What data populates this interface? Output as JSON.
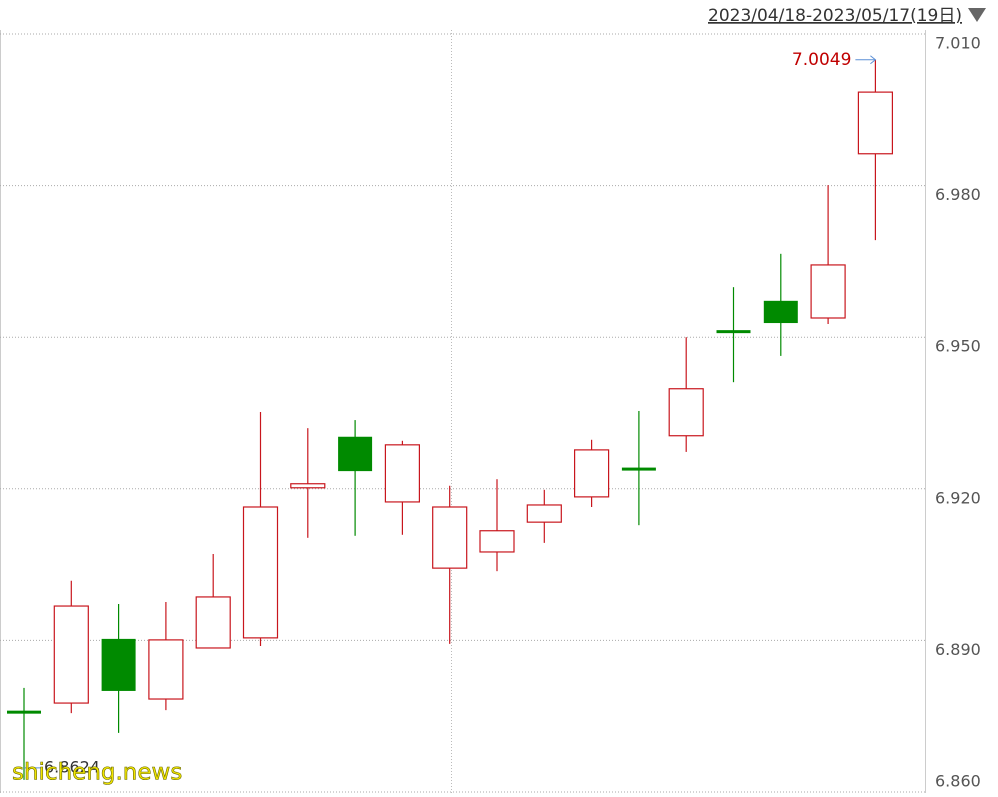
{
  "chart_data": {
    "type": "candlestick",
    "date_range": "2023/04/18-2023/05/17(19日)",
    "watermark": "shicheng.news",
    "up_color": "#c8161d",
    "down_color": "#008a00",
    "open": [
      6.8759,
      6.8776,
      6.8903,
      6.8784,
      6.8885,
      6.8905,
      6.9202,
      6.9303,
      6.9174,
      6.9043,
      6.9075,
      6.9134,
      6.9184,
      6.924,
      6.9305,
      6.9512,
      6.9572,
      6.9538,
      6.9863
    ],
    "high": [
      6.8806,
      6.9018,
      6.8972,
      6.8976,
      6.9071,
      6.9352,
      6.932,
      6.9336,
      6.9295,
      6.9206,
      6.9219,
      6.9198,
      6.9297,
      6.9354,
      6.95,
      6.9599,
      6.9665,
      6.9801,
      7.0049
    ],
    "low": [
      6.8624,
      6.8756,
      6.8717,
      6.8762,
      6.8885,
      6.8889,
      6.9103,
      6.9107,
      6.9109,
      6.8893,
      6.9037,
      6.9093,
      6.9164,
      6.9128,
      6.9273,
      6.9411,
      6.9463,
      6.9526,
      6.9692
    ],
    "close": [
      6.8757,
      6.8968,
      6.88,
      6.8901,
      6.8986,
      6.9164,
      6.921,
      6.9235,
      6.9287,
      6.9164,
      6.9117,
      6.9168,
      6.9277,
      6.9238,
      6.9398,
      6.951,
      6.9528,
      6.9643,
      6.9985
    ],
    "ylim": [
      6.86,
      7.01
    ],
    "yticks": [
      {
        "value": 6.86,
        "label": "6.860"
      },
      {
        "value": 6.89,
        "label": "6.890"
      },
      {
        "value": 6.92,
        "label": "6.920"
      },
      {
        "value": 6.95,
        "label": "6.950"
      },
      {
        "value": 6.98,
        "label": "6.980"
      },
      {
        "value": 7.01,
        "label": "7.010"
      }
    ],
    "grid": true
  }
}
